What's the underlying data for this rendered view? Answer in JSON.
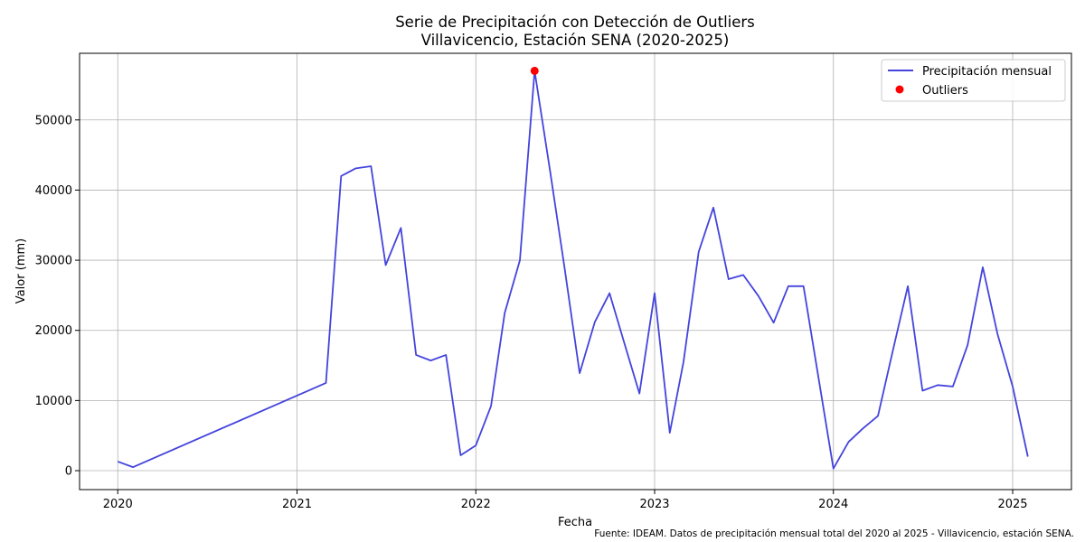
{
  "chart_data": {
    "type": "line",
    "title": "Serie de Precipitación con Detección de Outliers",
    "subtitle": "Villavicencio, Estación SENA (2020-2025)",
    "xlabel": "Fecha",
    "ylabel": "Valor (mm)",
    "x_ticks": [
      "2020",
      "2021",
      "2022",
      "2023",
      "2024",
      "2025"
    ],
    "y_ticks": [
      0,
      10000,
      20000,
      30000,
      40000,
      50000
    ],
    "xlim": [
      "2019-10-15",
      "2025-05-01"
    ],
    "ylim": [
      -2700,
      59500
    ],
    "grid": true,
    "legend_position": "top-right",
    "colors": {
      "line": "#4444dd",
      "outlier": "#ff0000",
      "grid": "#b0b0b0"
    },
    "series": [
      {
        "name": "Precipitación mensual",
        "type": "line",
        "x": [
          "2020-01-01",
          "2020-02-01",
          "2021-03-01",
          "2021-04-01",
          "2021-05-01",
          "2021-06-01",
          "2021-07-01",
          "2021-08-01",
          "2021-09-01",
          "2021-10-01",
          "2021-11-01",
          "2021-12-01",
          "2022-01-01",
          "2022-02-01",
          "2022-03-01",
          "2022-04-01",
          "2022-05-01",
          "2022-06-01",
          "2022-07-01",
          "2022-08-01",
          "2022-09-01",
          "2022-10-01",
          "2022-11-01",
          "2022-12-01",
          "2023-01-01",
          "2023-02-01",
          "2023-03-01",
          "2023-04-01",
          "2023-05-01",
          "2023-06-01",
          "2023-07-01",
          "2023-08-01",
          "2023-09-01",
          "2023-10-01",
          "2023-11-01",
          "2023-12-01",
          "2024-01-01",
          "2024-02-01",
          "2024-03-01",
          "2024-04-01",
          "2024-05-01",
          "2024-06-01",
          "2024-07-01",
          "2024-08-01",
          "2024-09-01",
          "2024-10-01",
          "2024-11-01",
          "2024-12-01",
          "2025-01-01",
          "2025-02-01"
        ],
        "y": [
          1300,
          500,
          12500,
          42000,
          43100,
          43400,
          29300,
          34600,
          16500,
          15700,
          16500,
          2200,
          3600,
          9200,
          22500,
          30000,
          57000,
          43000,
          29000,
          13900,
          21200,
          25300,
          18000,
          11000,
          25300,
          5400,
          15500,
          31200,
          37500,
          27300,
          27900,
          24900,
          21100,
          26300,
          26300,
          13500,
          300,
          4100,
          6000,
          7800,
          17000,
          26300,
          11400,
          12200,
          12000,
          17900,
          29000,
          19500,
          12000,
          2000
        ]
      },
      {
        "name": "Outliers",
        "type": "scatter",
        "x": [
          "2022-05-01"
        ],
        "y": [
          57000
        ]
      }
    ],
    "source_note": "Fuente: IDEAM. Datos de precipitación mensual total del 2020 al 2025 - Villavicencio, estación SENA."
  }
}
